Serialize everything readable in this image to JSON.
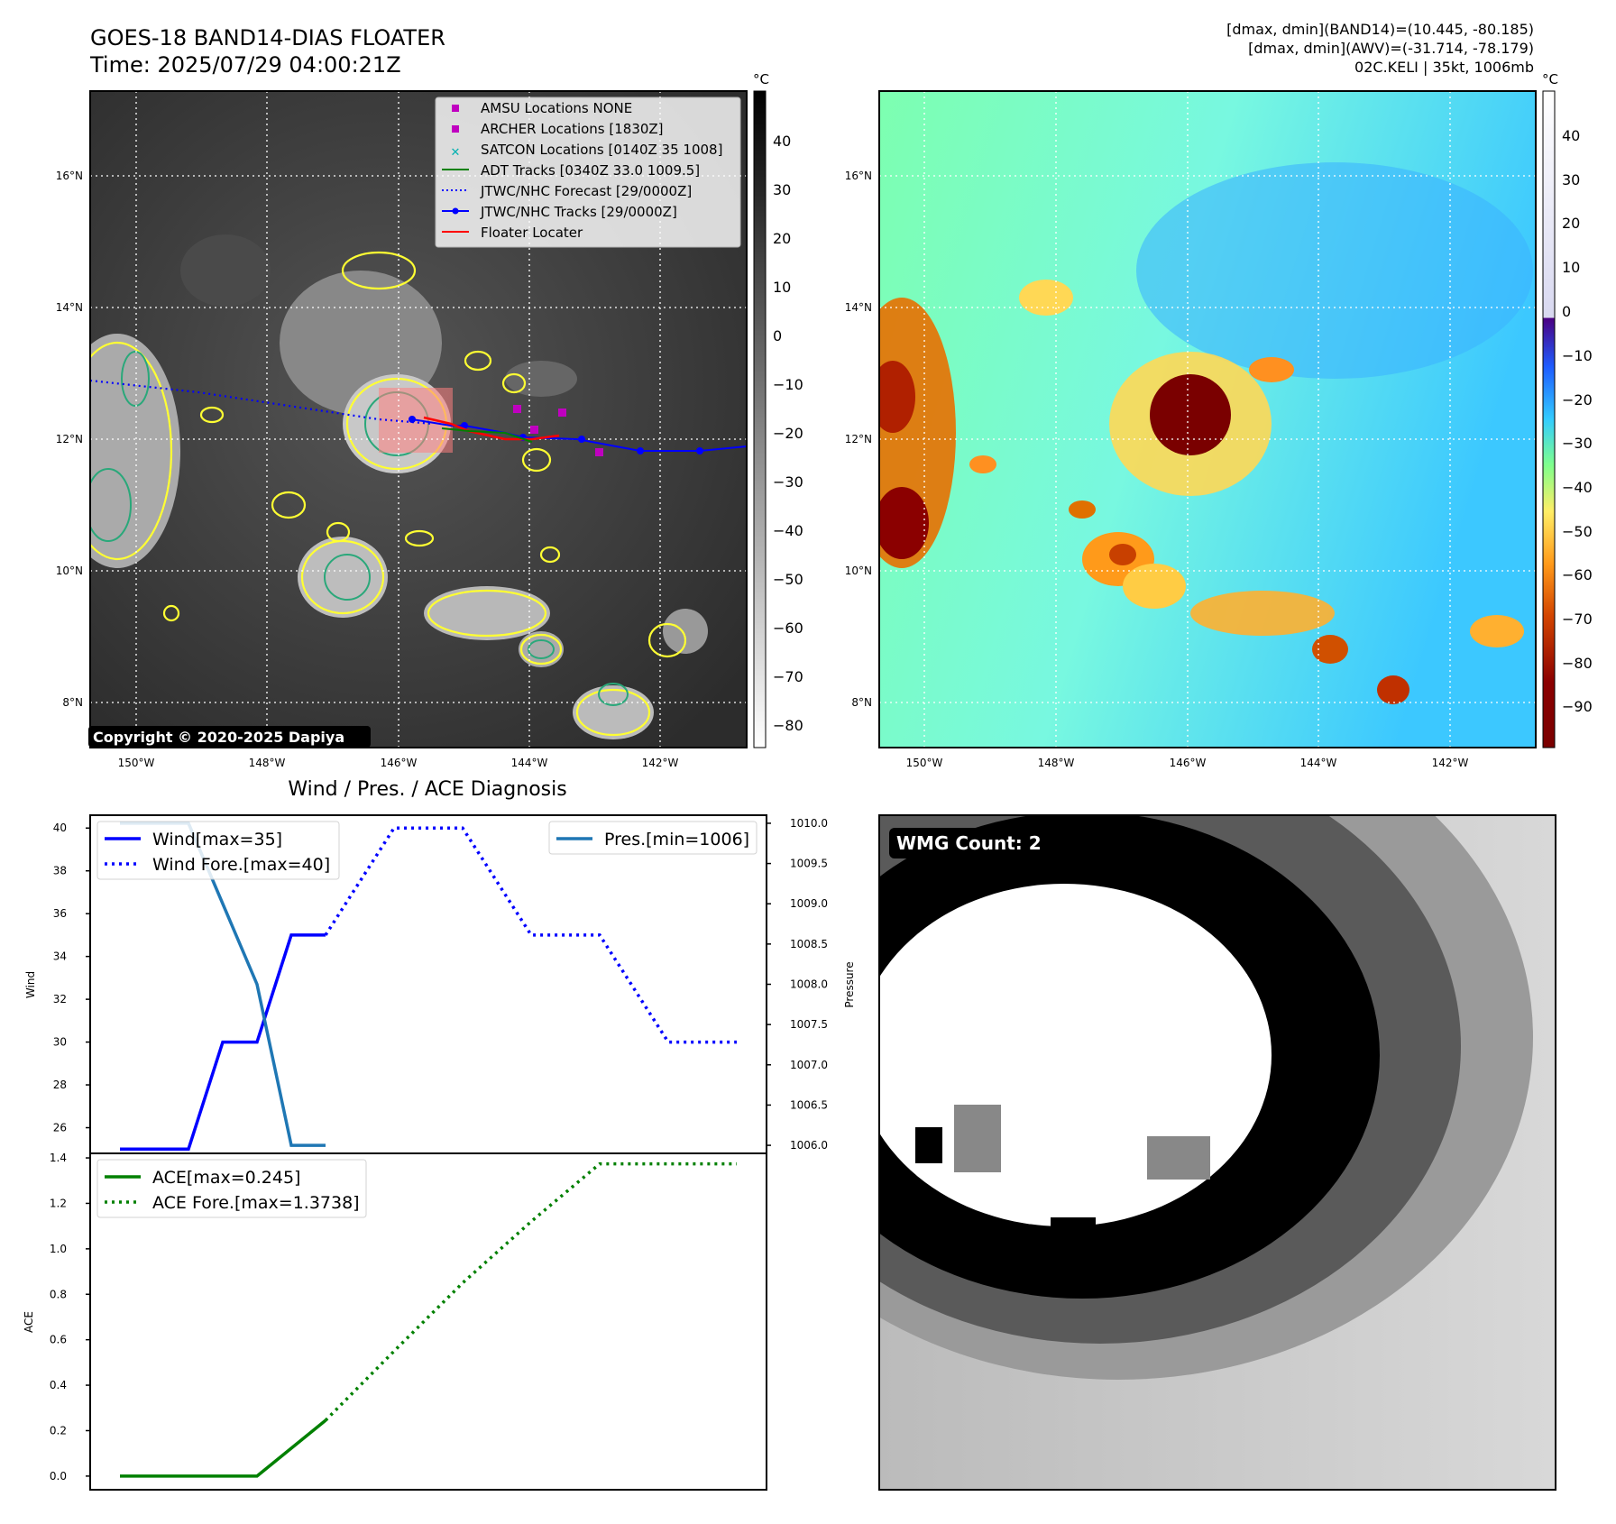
{
  "header": {
    "title": "GOES-18 BAND14-DIAS FLOATER",
    "time": "Time: 2025/07/29 04:00:21Z",
    "info1": "[dmax, dmin](BAND14)=(10.445, -80.185)",
    "info2": "[dmax, dmin](AWV)=(-31.714, -78.179)",
    "info3": "02C.KELI | 35kt, 1006mb"
  },
  "maps": {
    "lat_ticks": [
      "16°N",
      "14°N",
      "12°N",
      "10°N",
      "8°N"
    ],
    "lon_ticks": [
      "150°W",
      "148°W",
      "146°W",
      "144°W",
      "142°W"
    ],
    "copyright": "Copyright © 2020-2025 Dapiya",
    "legend": [
      {
        "label": "AMSU Locations NONE",
        "color": "#c000c0",
        "marker": "square"
      },
      {
        "label": "ARCHER Locations [1830Z]",
        "color": "#c000c0",
        "marker": "square"
      },
      {
        "label": "SATCON Locations [0140Z 35 1008]",
        "color": "#00b0b0",
        "marker": "x"
      },
      {
        "label": "ADT Tracks [0340Z 33.0 1009.5]",
        "color": "#008000",
        "marker": "line"
      },
      {
        "label": "JTWC/NHC Forecast [29/0000Z]",
        "color": "#0000ff",
        "marker": "dotted"
      },
      {
        "label": "JTWC/NHC Tracks [29/0000Z]",
        "color": "#0000ff",
        "marker": "line-dot"
      },
      {
        "label": "Floater Locater",
        "color": "#ff0000",
        "marker": "line"
      }
    ],
    "ir_colorbar": {
      "unit": "°C",
      "ticks": [
        "40",
        "30",
        "20",
        "10",
        "0",
        "−10",
        "−20",
        "−30",
        "−40",
        "−50",
        "−60",
        "−70",
        "−80"
      ]
    },
    "awv_colorbar": {
      "unit": "°C",
      "ticks": [
        "40",
        "30",
        "20",
        "10",
        "0",
        "−10",
        "−20",
        "−30",
        "−40",
        "−50",
        "−60",
        "−70",
        "−80",
        "−90"
      ]
    }
  },
  "wmg": {
    "label": "WMG Count: 2"
  },
  "chart_data": [
    {
      "type": "line",
      "title": "Wind / Pres. / ACE Diagnosis",
      "ylabel": "Wind",
      "y2label": "Pressure",
      "ylim": [
        24.8,
        40.6
      ],
      "y2lim": [
        1005.9,
        1010.1
      ],
      "yticks": [
        "40",
        "38",
        "36",
        "34",
        "32",
        "30",
        "28",
        "26"
      ],
      "y2ticks": [
        "1010.0",
        "1009.5",
        "1009.0",
        "1008.5",
        "1008.0",
        "1007.5",
        "1007.0",
        "1006.5",
        "1006.0"
      ],
      "x": [
        0,
        1,
        2,
        3,
        4,
        5,
        6,
        7,
        8,
        9
      ],
      "series": [
        {
          "name": "Wind[max=35]",
          "axis": "left",
          "style": "solid",
          "color": "#0000ff",
          "points": [
            [
              0,
              25
            ],
            [
              1,
              25
            ],
            [
              1.5,
              30
            ],
            [
              2,
              30
            ],
            [
              2.5,
              35
            ],
            [
              3,
              35
            ]
          ]
        },
        {
          "name": "Wind Fore.[max=40]",
          "axis": "left",
          "style": "dotted",
          "color": "#0000ff",
          "points": [
            [
              3,
              35
            ],
            [
              4,
              40
            ],
            [
              5,
              40
            ],
            [
              6,
              35
            ],
            [
              7,
              35
            ],
            [
              8,
              30
            ],
            [
              9,
              30
            ]
          ]
        },
        {
          "name": "Pres.[min=1006]",
          "axis": "right",
          "style": "solid",
          "color": "#1f77b4",
          "points": [
            [
              0,
              1010
            ],
            [
              1,
              1010
            ],
            [
              2,
              1008
            ],
            [
              2.5,
              1006
            ],
            [
              3,
              1006
            ]
          ]
        }
      ]
    },
    {
      "type": "line",
      "ylabel": "ACE",
      "ylim": [
        -0.06,
        1.42
      ],
      "yticks": [
        "1.4",
        "1.2",
        "1.0",
        "0.8",
        "0.6",
        "0.4",
        "0.2",
        "0.0"
      ],
      "x": [
        0,
        1,
        2,
        3,
        4,
        5,
        6,
        7,
        8,
        9
      ],
      "series": [
        {
          "name": "ACE[max=0.245]",
          "style": "solid",
          "color": "#008000",
          "points": [
            [
              0,
              0
            ],
            [
              1,
              0
            ],
            [
              2,
              0
            ],
            [
              3,
              0.245
            ]
          ]
        },
        {
          "name": "ACE Fore.[max=1.3738]",
          "style": "dotted",
          "color": "#008000",
          "points": [
            [
              3,
              0.245
            ],
            [
              4,
              0.55
            ],
            [
              5,
              0.85
            ],
            [
              6,
              1.12
            ],
            [
              7,
              1.3738
            ],
            [
              8,
              1.3738
            ],
            [
              9,
              1.3738
            ]
          ]
        }
      ]
    }
  ]
}
